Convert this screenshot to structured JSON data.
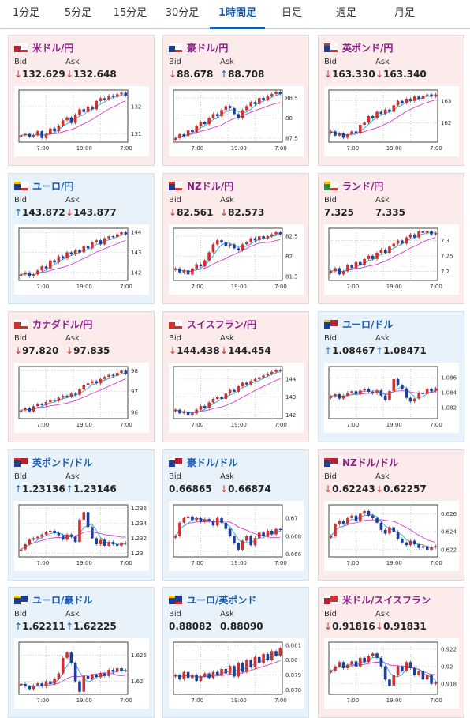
{
  "tabs": [
    {
      "label": "1分足",
      "active": false
    },
    {
      "label": "5分足",
      "active": false
    },
    {
      "label": "15分足",
      "active": false
    },
    {
      "label": "30分足",
      "active": false
    },
    {
      "label": "1時間足",
      "active": true
    },
    {
      "label": "日足",
      "active": false
    },
    {
      "label": "週足",
      "active": false
    },
    {
      "label": "月足",
      "active": false
    }
  ],
  "labels": {
    "bid": "Bid",
    "ask": "Ask"
  },
  "colors": {
    "up_candle": "#d0302f",
    "down_candle": "#1a3fa0",
    "ma_short": "#2aa8d8",
    "ma_long": "#d43bd0"
  },
  "cards": [
    {
      "title": "米ドル/円",
      "flag": "us-jp-flag",
      "bg": "pink",
      "bid": "132.629",
      "bid_dir": "down",
      "ask": "132.648",
      "ask_dir": "down",
      "chart_data": {
        "type": "candlestick",
        "ylim": [
          130.7,
          132.6
        ],
        "yticks": [
          "132",
          "131"
        ],
        "ytick_vals": [
          132,
          131
        ],
        "xticks": [
          "7:00",
          "19:00",
          "7:00"
        ],
        "close": [
          130.95,
          131.0,
          130.9,
          130.95,
          131.1,
          130.85,
          131.0,
          131.2,
          131.1,
          131.3,
          131.5,
          131.6,
          131.4,
          131.7,
          131.9,
          131.8,
          132.0,
          131.9,
          132.2,
          132.3,
          132.25,
          132.4,
          132.35,
          132.45,
          132.5,
          132.4
        ]
      }
    },
    {
      "title": "豪ドル/円",
      "flag": "au-jp-flag",
      "bg": "pink",
      "bid": "88.678",
      "bid_dir": "down",
      "ask": "88.708",
      "ask_dir": "up",
      "chart_data": {
        "type": "candlestick",
        "ylim": [
          87.4,
          88.7
        ],
        "yticks": [
          "88.5",
          "88",
          "87.5"
        ],
        "ytick_vals": [
          88.5,
          88,
          87.5
        ],
        "xticks": [
          "7:00",
          "19:00",
          "7:00"
        ],
        "close": [
          87.5,
          87.6,
          87.55,
          87.7,
          87.65,
          87.8,
          87.9,
          87.85,
          88.0,
          88.1,
          88.05,
          88.2,
          88.3,
          88.25,
          88.1,
          88.0,
          88.2,
          88.3,
          88.4,
          88.35,
          88.5,
          88.45,
          88.55,
          88.6,
          88.65,
          88.6
        ]
      }
    },
    {
      "title": "英ポンド/円",
      "flag": "gb-jp-flag",
      "bg": "pink",
      "bid": "163.330",
      "bid_dir": "down",
      "ask": "163.340",
      "ask_dir": "down",
      "chart_data": {
        "type": "candlestick",
        "ylim": [
          161.1,
          163.5
        ],
        "yticks": [
          "163",
          "162"
        ],
        "ytick_vals": [
          163,
          162
        ],
        "xticks": [
          "7:00",
          "19:00",
          "7:00"
        ],
        "close": [
          161.6,
          161.4,
          161.5,
          161.3,
          161.45,
          161.6,
          161.5,
          161.9,
          162.0,
          162.3,
          162.2,
          162.5,
          162.4,
          162.6,
          162.5,
          162.8,
          163.0,
          162.9,
          163.1,
          163.0,
          163.2,
          163.1,
          163.25,
          163.3,
          163.2,
          163.3
        ]
      }
    },
    {
      "title": "ユーロ/円",
      "flag": "eu-jp-flag",
      "bg": "blue",
      "bid": "143.872",
      "bid_dir": "up",
      "ask": "143.877",
      "ask_dir": "down",
      "chart_data": {
        "type": "candlestick",
        "ylim": [
          141.6,
          144.2
        ],
        "yticks": [
          "144",
          "143",
          "142"
        ],
        "ytick_vals": [
          144,
          143,
          142
        ],
        "xticks": [
          "7:00",
          "19:00",
          "7:00"
        ],
        "close": [
          141.9,
          142.0,
          141.8,
          141.9,
          142.1,
          142.3,
          142.2,
          142.6,
          142.5,
          142.8,
          142.7,
          143.0,
          142.9,
          143.1,
          143.0,
          143.3,
          143.2,
          143.5,
          143.6,
          143.4,
          143.7,
          143.8,
          143.75,
          143.9,
          144.0,
          143.9
        ]
      }
    },
    {
      "title": "NZドル/円",
      "flag": "nz-jp-flag",
      "bg": "pink",
      "bid": "82.561",
      "bid_dir": "down",
      "ask": "82.573",
      "ask_dir": "down",
      "chart_data": {
        "type": "candlestick",
        "ylim": [
          81.4,
          82.7
        ],
        "yticks": [
          "82.5",
          "82",
          "81.5"
        ],
        "ytick_vals": [
          82.5,
          82,
          81.5
        ],
        "xticks": [
          "7:00",
          "19:00",
          "7:00"
        ],
        "close": [
          81.7,
          81.6,
          81.65,
          81.55,
          81.7,
          81.8,
          81.75,
          81.9,
          82.1,
          82.3,
          82.4,
          82.35,
          82.25,
          82.3,
          82.2,
          82.15,
          82.3,
          82.35,
          82.45,
          82.4,
          82.5,
          82.45,
          82.5,
          82.55,
          82.6,
          82.55
        ]
      }
    },
    {
      "title": "ランド/円",
      "flag": "za-jp-flag",
      "bg": "pink",
      "bid": "7.325",
      "bid_dir": "none",
      "ask": "7.335",
      "ask_dir": "none",
      "chart_data": {
        "type": "candlestick",
        "ylim": [
          7.17,
          7.34
        ],
        "yticks": [
          "7.3",
          "7.25",
          "7.2"
        ],
        "ytick_vals": [
          7.3,
          7.25,
          7.2
        ],
        "xticks": [
          "7:00",
          "19:00",
          "7:00"
        ],
        "close": [
          7.2,
          7.21,
          7.19,
          7.2,
          7.22,
          7.21,
          7.23,
          7.22,
          7.24,
          7.25,
          7.24,
          7.26,
          7.27,
          7.26,
          7.28,
          7.29,
          7.3,
          7.29,
          7.31,
          7.32,
          7.31,
          7.33,
          7.325,
          7.33,
          7.32,
          7.325
        ]
      }
    },
    {
      "title": "カナダドル/円",
      "flag": "ca-jp-flag",
      "bg": "pink",
      "bid": "97.820",
      "bid_dir": "down",
      "ask": "97.835",
      "ask_dir": "down",
      "chart_data": {
        "type": "candlestick",
        "ylim": [
          95.7,
          98.2
        ],
        "yticks": [
          "98",
          "97",
          "96"
        ],
        "ytick_vals": [
          98,
          97,
          96
        ],
        "xticks": [
          "7:00",
          "19:00",
          "7:00"
        ],
        "close": [
          96.1,
          96.2,
          96.05,
          96.3,
          96.4,
          96.35,
          96.5,
          96.6,
          96.55,
          96.7,
          96.8,
          96.75,
          96.9,
          96.85,
          97.1,
          97.3,
          97.4,
          97.5,
          97.4,
          97.6,
          97.7,
          97.8,
          97.75,
          97.9,
          98.0,
          97.85
        ]
      }
    },
    {
      "title": "スイスフラン/円",
      "flag": "ch-jp-flag",
      "bg": "pink",
      "bid": "144.438",
      "bid_dir": "down",
      "ask": "144.454",
      "ask_dir": "down",
      "chart_data": {
        "type": "candlestick",
        "ylim": [
          141.8,
          144.7
        ],
        "yticks": [
          "144",
          "143",
          "142"
        ],
        "ytick_vals": [
          144,
          143,
          142
        ],
        "xticks": [
          "7:00",
          "19:00",
          "7:00"
        ],
        "close": [
          142.3,
          142.1,
          142.2,
          142.0,
          142.1,
          142.3,
          142.5,
          142.4,
          142.7,
          142.9,
          143.0,
          142.9,
          143.2,
          143.4,
          143.3,
          143.6,
          143.8,
          143.7,
          143.9,
          144.0,
          144.1,
          144.2,
          144.3,
          144.4,
          144.5,
          144.45
        ]
      }
    },
    {
      "title": "ユーロ/ドル",
      "flag": "eu-us-flag",
      "bg": "blue",
      "bid": "1.08467",
      "bid_dir": "up",
      "ask": "1.08471",
      "ask_dir": "up",
      "chart_data": {
        "type": "candlestick",
        "ylim": [
          1.0805,
          1.0875
        ],
        "yticks": [
          "1.086",
          "1.084",
          "1.082"
        ],
        "ytick_vals": [
          1.086,
          1.084,
          1.082
        ],
        "xticks": [
          "7:00",
          "19:00",
          "7:00"
        ],
        "close": [
          1.0835,
          1.0838,
          1.0832,
          1.0836,
          1.084,
          1.0842,
          1.0838,
          1.0843,
          1.0845,
          1.0841,
          1.0839,
          1.0843,
          1.0836,
          1.083,
          1.0842,
          1.0858,
          1.085,
          1.0845,
          1.0833,
          1.0828,
          1.0832,
          1.084,
          1.0838,
          1.0845,
          1.0842,
          1.0846
        ]
      }
    },
    {
      "title": "英ポンド/ドル",
      "flag": "gb-us-flag",
      "bg": "blue",
      "bid": "1.23136",
      "bid_dir": "up",
      "ask": "1.23146",
      "ask_dir": "up",
      "chart_data": {
        "type": "candlestick",
        "ylim": [
          1.2295,
          1.2365
        ],
        "yticks": [
          "1.236",
          "1.234",
          "1.232",
          "1.23"
        ],
        "ytick_vals": [
          1.236,
          1.234,
          1.232,
          1.23
        ],
        "xticks": [
          "7:00",
          "19:00",
          "7:00"
        ],
        "close": [
          1.2305,
          1.2312,
          1.2318,
          1.232,
          1.2322,
          1.2325,
          1.2328,
          1.233,
          1.2327,
          1.2324,
          1.2318,
          1.2325,
          1.2322,
          1.2315,
          1.2345,
          1.2355,
          1.2335,
          1.232,
          1.2312,
          1.2318,
          1.231,
          1.2315,
          1.2312,
          1.231,
          1.2313,
          1.2314
        ]
      }
    },
    {
      "title": "豪ドル/ドル",
      "flag": "au-us-flag",
      "bg": "blue",
      "bid": "0.66865",
      "bid_dir": "none",
      "ask": "0.66874",
      "ask_dir": "down",
      "chart_data": {
        "type": "candlestick",
        "ylim": [
          0.6657,
          0.6715
        ],
        "yticks": [
          "0.67",
          "0.668",
          "0.666"
        ],
        "ytick_vals": [
          0.67,
          0.668,
          0.666
        ],
        "xticks": [
          "7:00",
          "19:00",
          "7:00"
        ],
        "close": [
          0.668,
          0.6695,
          0.67,
          0.6702,
          0.6698,
          0.67,
          0.6696,
          0.6699,
          0.6697,
          0.6692,
          0.67,
          0.6695,
          0.6688,
          0.668,
          0.6672,
          0.6665,
          0.6675,
          0.668,
          0.667,
          0.6678,
          0.6684,
          0.668,
          0.6686,
          0.6682,
          0.6688,
          0.6687
        ]
      }
    },
    {
      "title": "NZドル/ドル",
      "flag": "nz-us-flag",
      "bg": "pink",
      "bid": "0.62243",
      "bid_dir": "down",
      "ask": "0.62257",
      "ask_dir": "down",
      "chart_data": {
        "type": "candlestick",
        "ylim": [
          0.6212,
          0.627
        ],
        "yticks": [
          "0.626",
          "0.624",
          "0.622"
        ],
        "ytick_vals": [
          0.626,
          0.624,
          0.622
        ],
        "xticks": [
          "7:00",
          "19:00",
          "7:00"
        ],
        "close": [
          0.6235,
          0.6248,
          0.6252,
          0.6249,
          0.6255,
          0.6258,
          0.6252,
          0.626,
          0.6263,
          0.6258,
          0.6255,
          0.625,
          0.6242,
          0.6238,
          0.6245,
          0.624,
          0.6232,
          0.6228,
          0.6225,
          0.623,
          0.6226,
          0.6222,
          0.6224,
          0.622,
          0.6223,
          0.6224
        ]
      }
    },
    {
      "title": "ユーロ/豪ドル",
      "flag": "eu-au-flag",
      "bg": "blue",
      "bid": "1.62211",
      "bid_dir": "up",
      "ask": "1.62225",
      "ask_dir": "up",
      "chart_data": {
        "type": "candlestick",
        "ylim": [
          1.6175,
          1.6275
        ],
        "yticks": [
          "1.625",
          "1.62"
        ],
        "ytick_vals": [
          1.625,
          1.62
        ],
        "xticks": [
          "7:00",
          "19:00",
          "7:00"
        ],
        "close": [
          1.6195,
          1.619,
          1.6185,
          1.6192,
          1.6196,
          1.619,
          1.62,
          1.6195,
          1.6205,
          1.6215,
          1.6245,
          1.6255,
          1.6235,
          1.62,
          1.618,
          1.621,
          1.6205,
          1.6212,
          1.6208,
          1.6215,
          1.621,
          1.6222,
          1.6218,
          1.6225,
          1.622,
          1.6221
        ]
      }
    },
    {
      "title": "ユーロ/英ポンド",
      "flag": "eu-gb-flag",
      "bg": "blue",
      "bid": "0.88082",
      "bid_dir": "none",
      "ask": "0.88090",
      "ask_dir": "none",
      "chart_data": {
        "type": "candlestick",
        "ylim": [
          0.8777,
          0.8812
        ],
        "yticks": [
          "0.881",
          "0.88",
          "0.879",
          "0.878"
        ],
        "ytick_vals": [
          0.881,
          0.88,
          0.879,
          0.878
        ],
        "xticks": [
          "7:00",
          "19:00",
          "7:00"
        ],
        "close": [
          0.879,
          0.8787,
          0.8792,
          0.8788,
          0.879,
          0.8786,
          0.8789,
          0.8791,
          0.8788,
          0.8792,
          0.879,
          0.8794,
          0.8791,
          0.8796,
          0.8789,
          0.8798,
          0.8792,
          0.88,
          0.8795,
          0.8802,
          0.8798,
          0.8804,
          0.88,
          0.8806,
          0.8803,
          0.8808
        ]
      }
    },
    {
      "title": "米ドル/スイスフラン",
      "flag": "us-ch-flag",
      "bg": "pink",
      "bid": "0.91816",
      "bid_dir": "down",
      "ask": "0.91831",
      "ask_dir": "down",
      "chart_data": {
        "type": "candlestick",
        "ylim": [
          0.9168,
          0.9228
        ],
        "yticks": [
          "0.922",
          "0.92",
          "0.918"
        ],
        "ytick_vals": [
          0.922,
          0.92,
          0.918
        ],
        "xticks": [
          "7:00",
          "19:00",
          "7:00"
        ],
        "close": [
          0.9195,
          0.92,
          0.9205,
          0.9198,
          0.9202,
          0.9206,
          0.92,
          0.921,
          0.9205,
          0.9212,
          0.9215,
          0.921,
          0.92,
          0.9185,
          0.9178,
          0.919,
          0.92,
          0.9195,
          0.9205,
          0.9198,
          0.919,
          0.9195,
          0.9185,
          0.919,
          0.918,
          0.9182
        ]
      }
    }
  ]
}
